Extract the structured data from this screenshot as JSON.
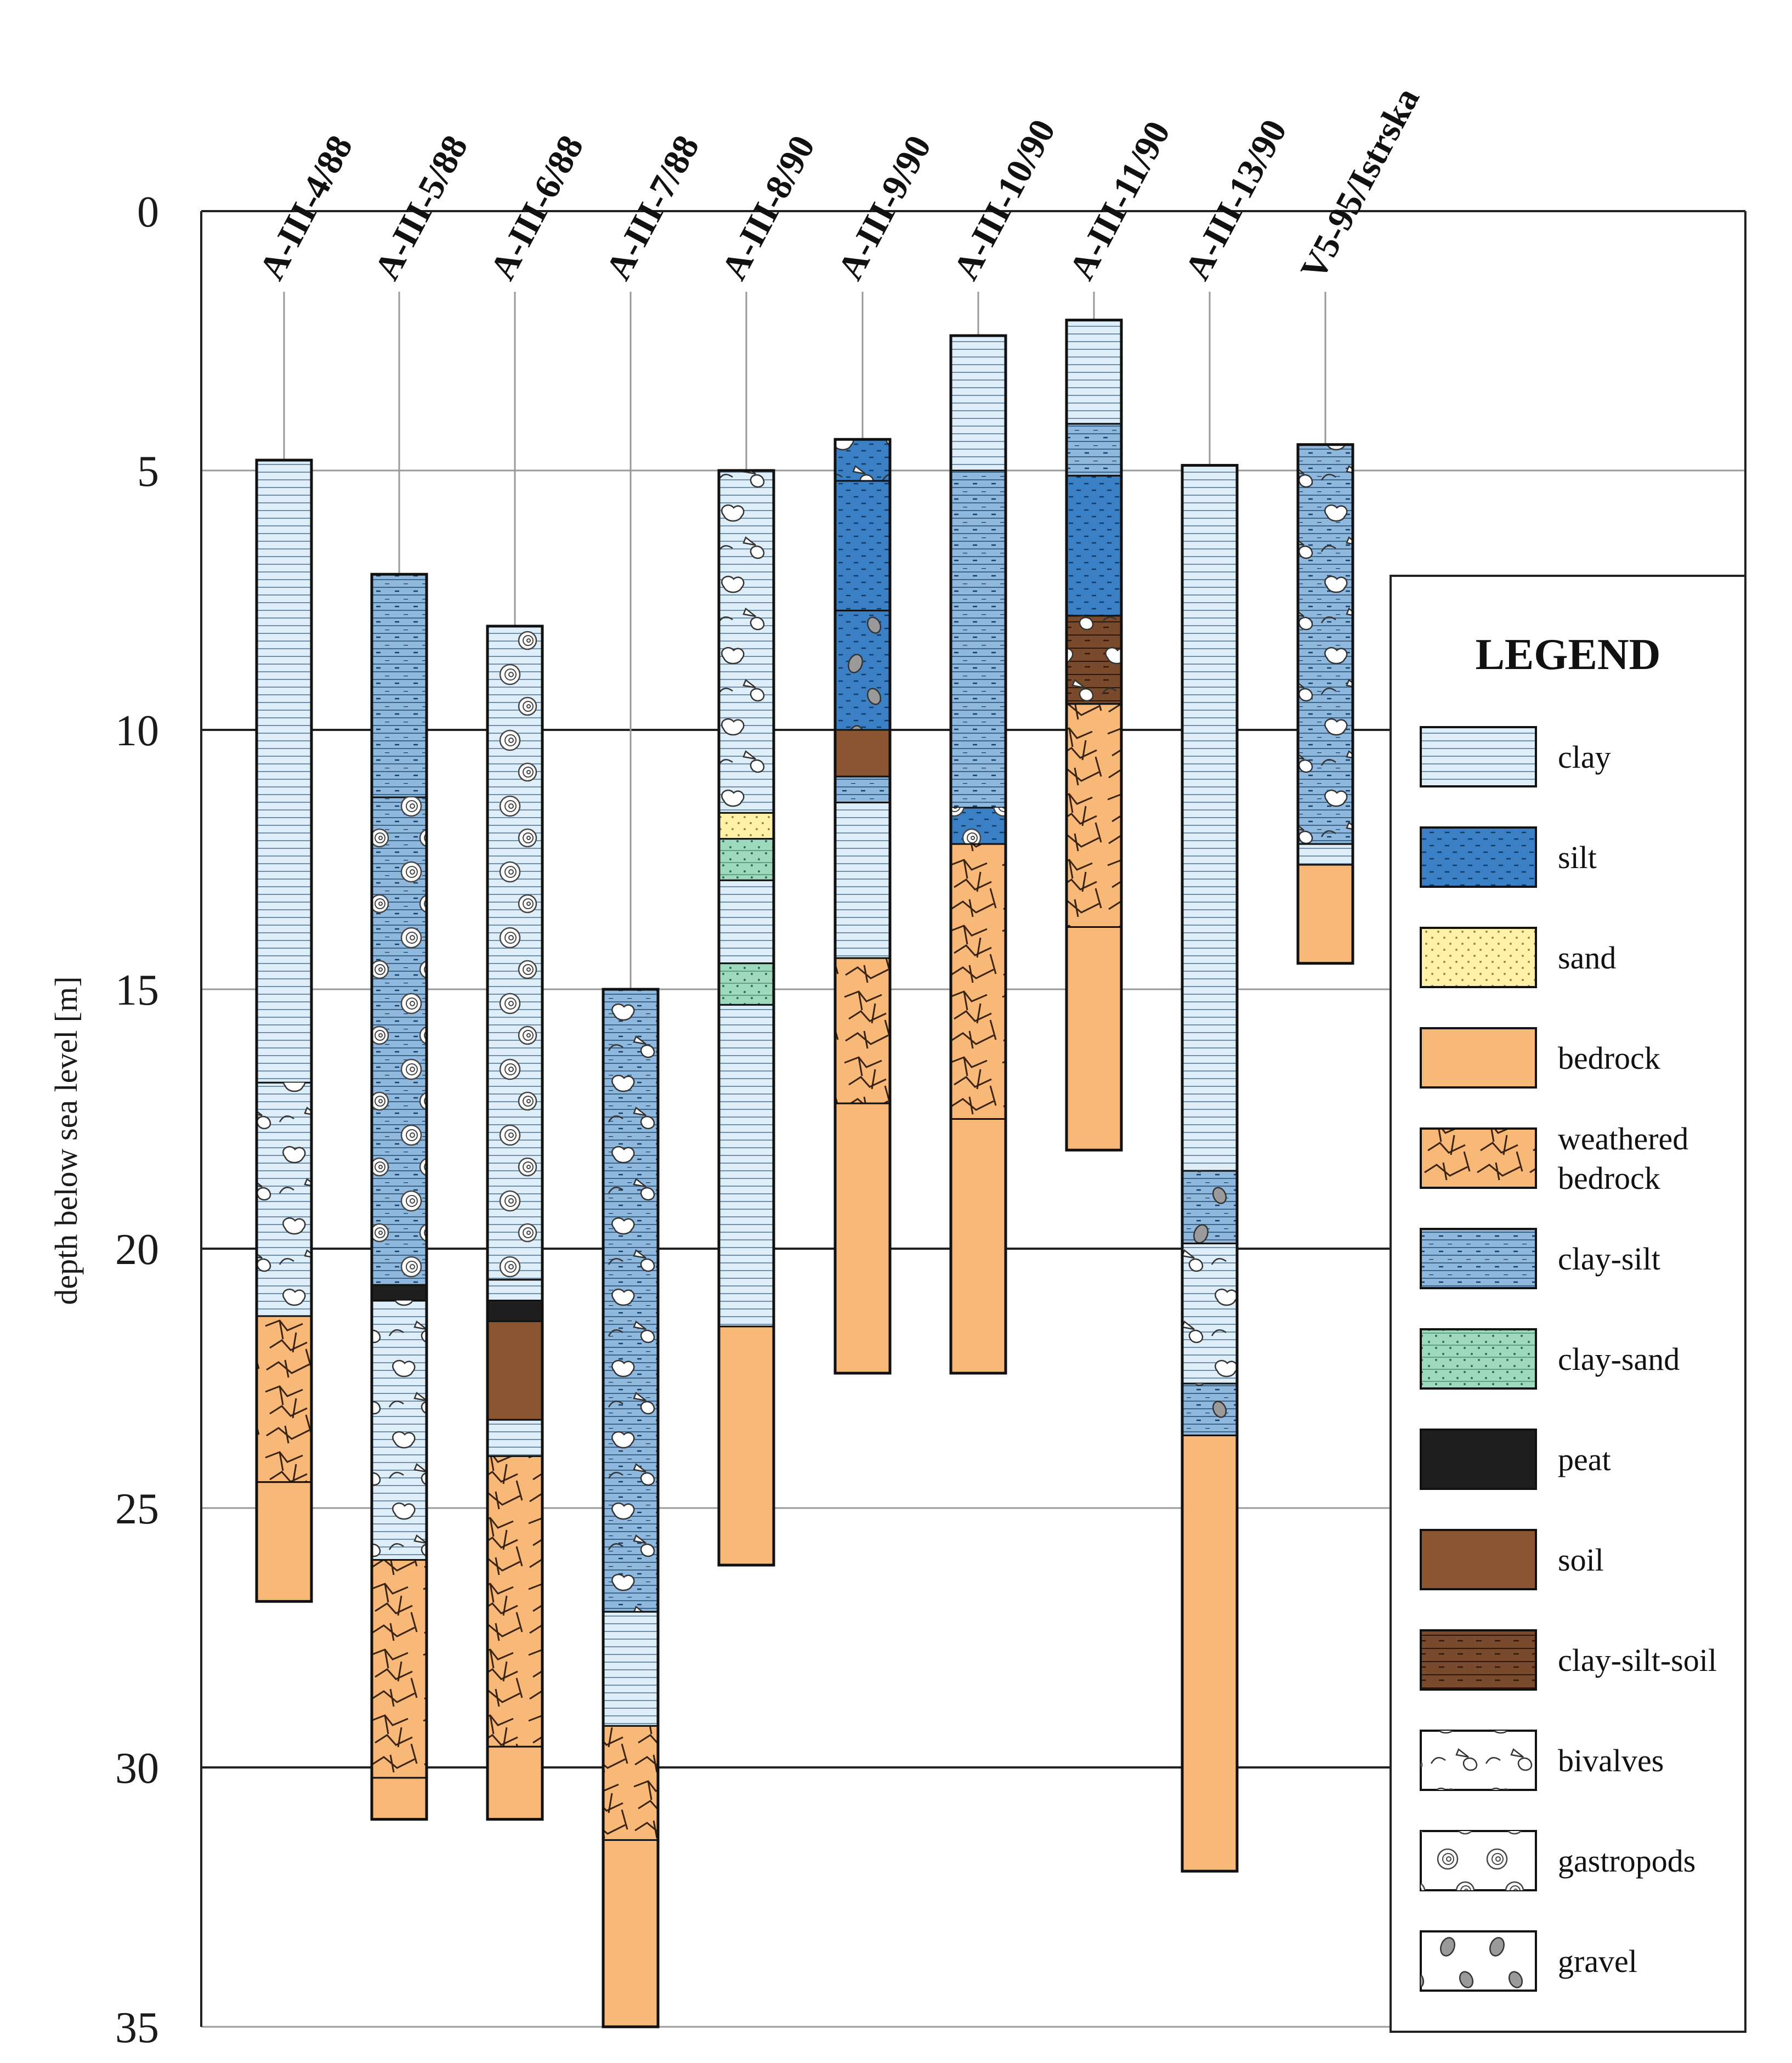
{
  "y_axis": {
    "label": "depth below sea level [m]",
    "ticks": [
      "0",
      "5",
      "10",
      "15",
      "20",
      "25",
      "30",
      "35"
    ],
    "min": 0,
    "max": 35
  },
  "colors": {
    "clay": "#ddeef9",
    "silt": "#3b7fc4",
    "sand": "#fff2a8",
    "bedrock": "#f8b878",
    "weathered_bedrock": "#f8b878",
    "clay_silt": "#8fb8df",
    "clay_sand": "#9ed8bd",
    "peat": "#1f1f1f",
    "soil": "#8a5530",
    "clay_silt_soil": "#7a4a2c"
  },
  "cores": [
    {
      "name": "A-III-4/88",
      "layers": [
        {
          "top": 4.8,
          "bottom": 16.8,
          "type": "clay"
        },
        {
          "top": 16.8,
          "bottom": 21.3,
          "type": "clay",
          "fossil": "bivalves"
        },
        {
          "top": 21.3,
          "bottom": 24.5,
          "type": "weathered_bedrock"
        },
        {
          "top": 24.5,
          "bottom": 26.8,
          "type": "bedrock"
        }
      ]
    },
    {
      "name": "A-III-5/88",
      "layers": [
        {
          "top": 7.0,
          "bottom": 11.3,
          "type": "clay_silt"
        },
        {
          "top": 11.3,
          "bottom": 20.7,
          "type": "clay_silt",
          "fossil": "gastropods"
        },
        {
          "top": 20.7,
          "bottom": 21.0,
          "type": "peat"
        },
        {
          "top": 21.0,
          "bottom": 26.0,
          "type": "clay",
          "fossil": "bivalves"
        },
        {
          "top": 26.0,
          "bottom": 30.2,
          "type": "weathered_bedrock"
        },
        {
          "top": 30.2,
          "bottom": 31.0,
          "type": "bedrock"
        }
      ]
    },
    {
      "name": "A-III-6/88",
      "layers": [
        {
          "top": 8.0,
          "bottom": 20.6,
          "type": "clay",
          "fossil": "gastropods"
        },
        {
          "top": 20.6,
          "bottom": 21.0,
          "type": "clay"
        },
        {
          "top": 21.0,
          "bottom": 21.4,
          "type": "peat"
        },
        {
          "top": 21.4,
          "bottom": 23.3,
          "type": "soil"
        },
        {
          "top": 23.3,
          "bottom": 24.0,
          "type": "clay"
        },
        {
          "top": 24.0,
          "bottom": 29.6,
          "type": "weathered_bedrock"
        },
        {
          "top": 29.6,
          "bottom": 31.0,
          "type": "bedrock"
        }
      ]
    },
    {
      "name": "A-III-7/88",
      "layers": [
        {
          "top": 15.0,
          "bottom": 27.0,
          "type": "clay_silt",
          "fossil": "bivalves"
        },
        {
          "top": 27.0,
          "bottom": 29.2,
          "type": "clay"
        },
        {
          "top": 29.2,
          "bottom": 31.4,
          "type": "weathered_bedrock"
        },
        {
          "top": 31.4,
          "bottom": 35.0,
          "type": "bedrock"
        }
      ]
    },
    {
      "name": "A-III-8/90",
      "layers": [
        {
          "top": 5.0,
          "bottom": 11.6,
          "type": "clay",
          "fossil": "bivalves"
        },
        {
          "top": 11.6,
          "bottom": 12.1,
          "type": "sand"
        },
        {
          "top": 12.1,
          "bottom": 12.9,
          "type": "clay_sand"
        },
        {
          "top": 12.9,
          "bottom": 14.5,
          "type": "clay"
        },
        {
          "top": 14.5,
          "bottom": 15.3,
          "type": "clay_sand"
        },
        {
          "top": 15.3,
          "bottom": 21.5,
          "type": "clay"
        },
        {
          "top": 21.5,
          "bottom": 26.1,
          "type": "bedrock"
        }
      ]
    },
    {
      "name": "A-III-9/90",
      "layers": [
        {
          "top": 4.4,
          "bottom": 5.2,
          "type": "silt",
          "fossil": "bivalves"
        },
        {
          "top": 5.2,
          "bottom": 7.7,
          "type": "silt"
        },
        {
          "top": 7.7,
          "bottom": 10.0,
          "type": "silt",
          "fossil": "gravel"
        },
        {
          "top": 10.0,
          "bottom": 10.9,
          "type": "soil"
        },
        {
          "top": 10.9,
          "bottom": 11.4,
          "type": "clay_silt"
        },
        {
          "top": 11.4,
          "bottom": 14.4,
          "type": "clay"
        },
        {
          "top": 14.4,
          "bottom": 17.2,
          "type": "weathered_bedrock"
        },
        {
          "top": 17.2,
          "bottom": 22.4,
          "type": "bedrock"
        }
      ]
    },
    {
      "name": "A-III-10/90",
      "layers": [
        {
          "top": 2.4,
          "bottom": 5.0,
          "type": "clay"
        },
        {
          "top": 5.0,
          "bottom": 11.5,
          "type": "clay_silt"
        },
        {
          "top": 11.5,
          "bottom": 12.2,
          "type": "silt",
          "fossil": "gastropods"
        },
        {
          "top": 12.2,
          "bottom": 17.5,
          "type": "weathered_bedrock"
        },
        {
          "top": 17.5,
          "bottom": 22.4,
          "type": "bedrock"
        }
      ]
    },
    {
      "name": "A-III-11/90",
      "layers": [
        {
          "top": 2.1,
          "bottom": 4.1,
          "type": "clay"
        },
        {
          "top": 4.1,
          "bottom": 5.1,
          "type": "clay_silt"
        },
        {
          "top": 5.1,
          "bottom": 7.8,
          "type": "silt"
        },
        {
          "top": 7.8,
          "bottom": 9.5,
          "type": "clay_silt_soil",
          "fossil": "bivalves"
        },
        {
          "top": 9.5,
          "bottom": 13.8,
          "type": "weathered_bedrock"
        },
        {
          "top": 13.8,
          "bottom": 18.1,
          "type": "bedrock"
        }
      ]
    },
    {
      "name": "A-III-13/90",
      "layers": [
        {
          "top": 4.9,
          "bottom": 18.5,
          "type": "clay"
        },
        {
          "top": 18.5,
          "bottom": 19.9,
          "type": "clay_silt",
          "fossil": "gravel"
        },
        {
          "top": 19.9,
          "bottom": 22.6,
          "type": "clay",
          "fossil": "bivalves"
        },
        {
          "top": 22.6,
          "bottom": 23.6,
          "type": "clay_silt",
          "fossil": "gravel"
        },
        {
          "top": 23.6,
          "bottom": 32.0,
          "type": "bedrock"
        }
      ]
    },
    {
      "name": "V5-95/Istrska",
      "layers": [
        {
          "top": 4.5,
          "bottom": 12.2,
          "type": "clay_silt",
          "fossil": "bivalves"
        },
        {
          "top": 12.2,
          "bottom": 12.6,
          "type": "clay"
        },
        {
          "top": 12.6,
          "bottom": 14.5,
          "type": "bedrock"
        }
      ]
    }
  ],
  "legend": {
    "title": "LEGEND",
    "items": [
      {
        "id": "clay",
        "lines": [
          "clay"
        ]
      },
      {
        "id": "silt",
        "lines": [
          "silt"
        ]
      },
      {
        "id": "sand",
        "lines": [
          "sand"
        ]
      },
      {
        "id": "bedrock",
        "lines": [
          "bedrock"
        ]
      },
      {
        "id": "weathered_bedrock",
        "lines": [
          "weathered",
          "bedrock"
        ]
      },
      {
        "id": "clay_silt",
        "lines": [
          "clay-silt"
        ]
      },
      {
        "id": "clay_sand",
        "lines": [
          "clay-sand"
        ]
      },
      {
        "id": "peat",
        "lines": [
          "peat"
        ]
      },
      {
        "id": "soil",
        "lines": [
          "soil"
        ]
      },
      {
        "id": "clay_silt_soil",
        "lines": [
          "clay-silt-soil"
        ]
      },
      {
        "id": "bivalves",
        "lines": [
          "bivalves"
        ]
      },
      {
        "id": "gastropods",
        "lines": [
          "gastropods"
        ]
      },
      {
        "id": "gravel",
        "lines": [
          "gravel"
        ]
      }
    ]
  }
}
